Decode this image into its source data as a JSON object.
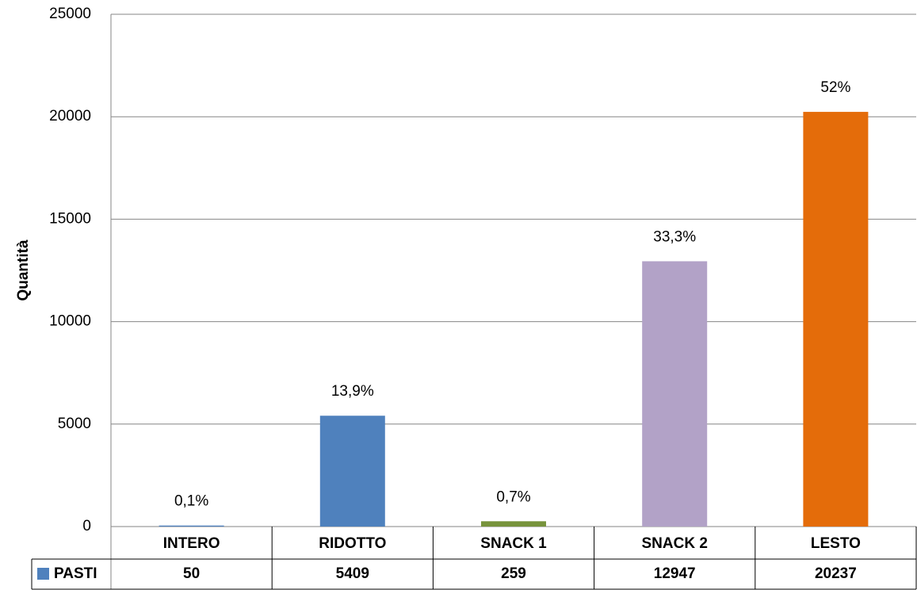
{
  "chart_data": {
    "type": "bar",
    "y_axis_label": "Quantità",
    "categories": [
      "INTERO",
      "RIDOTTO",
      "SNACK 1",
      "SNACK 2",
      "LESTO"
    ],
    "series": [
      {
        "name": "PASTI",
        "color": "#4f81bd",
        "colors": [
          "#4f81bd",
          "#4f81bd",
          "#77933c",
          "#b2a2c7",
          "#e46c0a"
        ],
        "values": [
          50,
          5409,
          259,
          12947,
          20237
        ],
        "share_labels": [
          "0,1%",
          "13,9%",
          "0,7%",
          "33,3%",
          "52%"
        ]
      }
    ],
    "ylim": [
      0,
      25000
    ],
    "yticks": [
      0,
      5000,
      10000,
      15000,
      20000,
      25000
    ],
    "grid": true
  }
}
